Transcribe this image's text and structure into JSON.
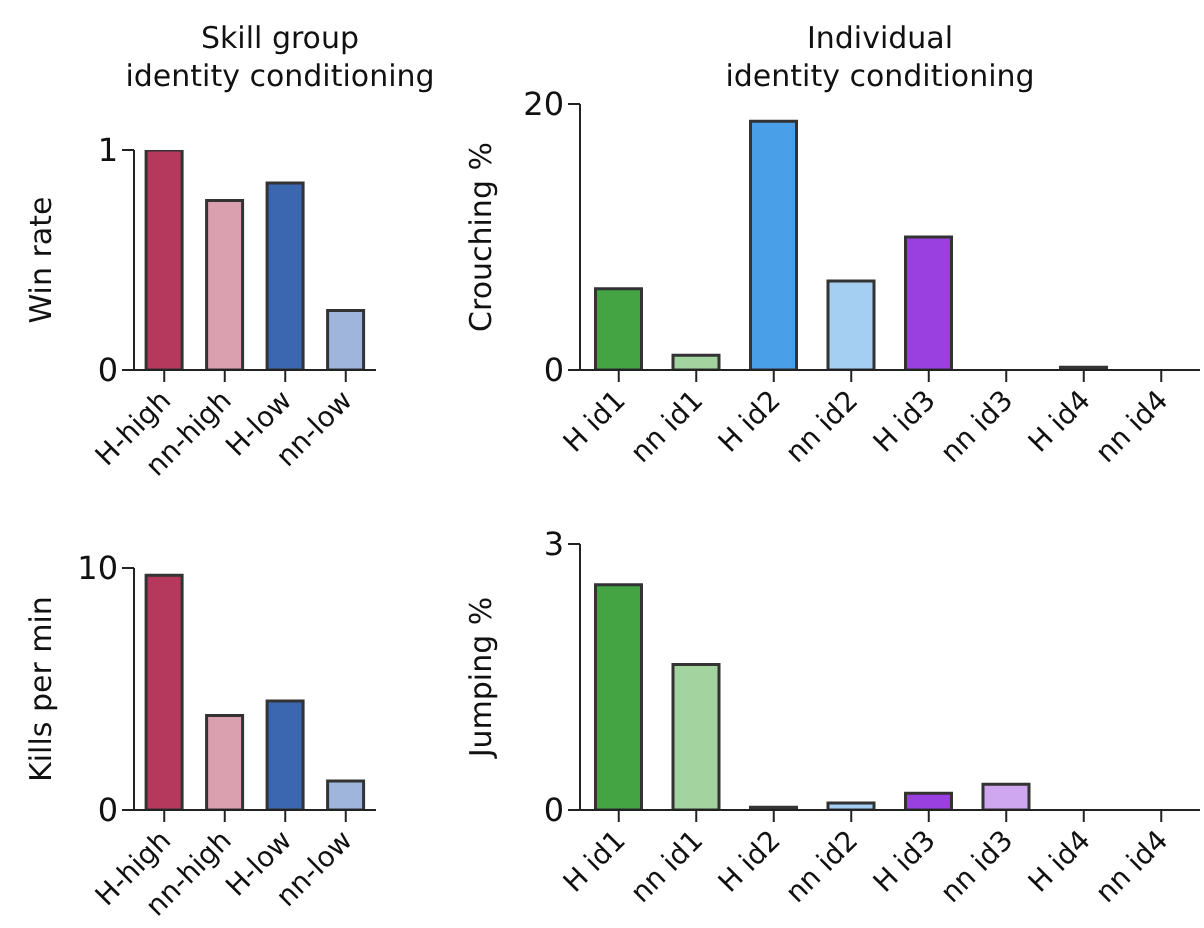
{
  "chart_data": [
    {
      "type": "bar",
      "title": "Skill group\nidentity conditioning",
      "ylabel": "Win rate",
      "categories": [
        "H-high",
        "nn-high",
        "H-low",
        "nn-low"
      ],
      "values": [
        1.0,
        0.77,
        0.85,
        0.27
      ],
      "colors": [
        "#b5395c",
        "#dba0b0",
        "#3b67b0",
        "#9fb5dc"
      ],
      "ylim": [
        0,
        1
      ],
      "yticks": [
        0,
        1
      ],
      "grid": false,
      "legend": false
    },
    {
      "type": "bar",
      "title": "Individual\nidentity conditioning",
      "ylabel": "Crouching %",
      "categories": [
        "H id1",
        "nn id1",
        "H id2",
        "nn id2",
        "H id3",
        "nn id3",
        "H id4",
        "nn id4"
      ],
      "values": [
        6.1,
        1.1,
        18.7,
        6.7,
        10.0,
        0,
        0.2,
        0
      ],
      "colors": [
        "#44a343",
        "#a3d39f",
        "#4aa0e8",
        "#a5cff2",
        "#9b40e0",
        "#cfa6f0",
        "#333333",
        "#555555"
      ],
      "ylim": [
        0,
        20
      ],
      "yticks": [
        0,
        20
      ],
      "grid": false,
      "legend": false
    },
    {
      "type": "bar",
      "ylabel": "Kills per min",
      "categories": [
        "H-high",
        "nn-high",
        "H-low",
        "nn-low"
      ],
      "values": [
        9.7,
        3.9,
        4.5,
        1.2
      ],
      "colors": [
        "#b5395c",
        "#dba0b0",
        "#3b67b0",
        "#9fb5dc"
      ],
      "ylim": [
        0,
        10
      ],
      "yticks": [
        0,
        10
      ],
      "grid": false,
      "legend": false
    },
    {
      "type": "bar",
      "ylabel": "Jumping %",
      "categories": [
        "H id1",
        "nn id1",
        "H id2",
        "nn id2",
        "H id3",
        "nn id3",
        "H id4",
        "nn id4"
      ],
      "values": [
        2.54,
        1.64,
        0.03,
        0.08,
        0.19,
        0.29,
        0,
        0
      ],
      "colors": [
        "#44a343",
        "#a3d39f",
        "#333333",
        "#a5cff2",
        "#9b40e0",
        "#cfa6f0",
        "#333333",
        "#555555"
      ],
      "ylim": [
        0,
        3
      ],
      "yticks": [
        0,
        3
      ],
      "grid": false,
      "legend": false
    }
  ]
}
